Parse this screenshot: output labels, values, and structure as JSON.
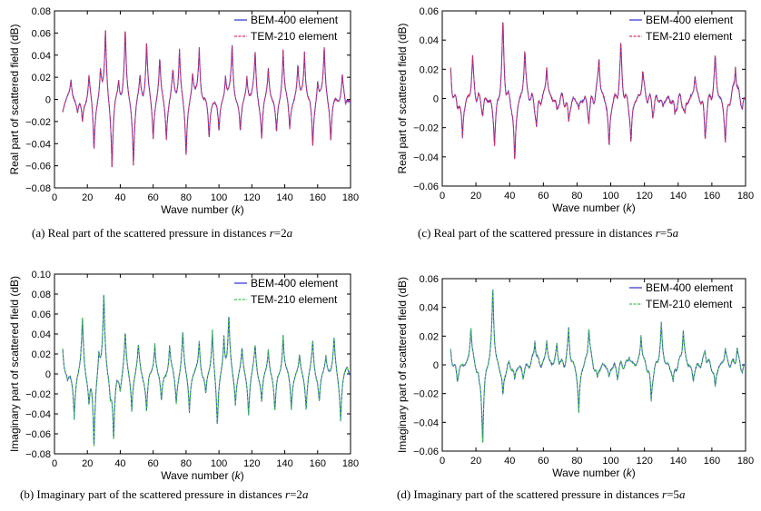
{
  "chart_data": [
    {
      "id": "a",
      "type": "line",
      "caption": {
        "pre": "(a) Real part of the scattered pressure in distances ",
        "var": "r",
        "post": "=2",
        "var2": "a"
      },
      "xlabel": "Wave number (k)",
      "ylabel": "Real part of scattered field (dB)",
      "xlim": [
        0,
        180
      ],
      "ylim": [
        -0.08,
        0.08
      ],
      "xticks": [
        0,
        20,
        40,
        60,
        80,
        100,
        120,
        140,
        160,
        180
      ],
      "yticks": [
        -0.08,
        -0.06,
        -0.04,
        -0.02,
        0,
        0.02,
        0.04,
        0.06,
        0.08
      ],
      "ytick_labels": [
        "−0.08",
        "−0.06",
        "−0.04",
        "−0.02",
        "0",
        "0.02",
        "0.04",
        "0.06",
        "0.08"
      ],
      "legend": [
        "BEM-400 element",
        "TEM-210 element"
      ],
      "colors": {
        "series1": "#2b2bd6",
        "series2": "#e0305a"
      },
      "baseline": 0.0,
      "osc_amp": 0.004,
      "osc_period": 7,
      "peaks": [
        [
          5,
          -0.008
        ],
        [
          10,
          0.018
        ],
        [
          14,
          -0.012
        ],
        [
          17,
          -0.022
        ],
        [
          21,
          0.025
        ],
        [
          24,
          -0.05
        ],
        [
          28,
          0.028
        ],
        [
          31,
          0.066
        ],
        [
          35,
          -0.066
        ],
        [
          39,
          0.02
        ],
        [
          43,
          0.066
        ],
        [
          48,
          -0.062
        ],
        [
          52,
          0.022
        ],
        [
          56,
          0.054
        ],
        [
          60,
          -0.037
        ],
        [
          64,
          0.04
        ],
        [
          68,
          -0.035
        ],
        [
          72,
          0.025
        ],
        [
          76,
          0.05
        ],
        [
          80,
          -0.055
        ],
        [
          84,
          0.025
        ],
        [
          88,
          0.05
        ],
        [
          94,
          -0.038
        ],
        [
          100,
          -0.032
        ],
        [
          104,
          0.025
        ],
        [
          108,
          0.05
        ],
        [
          113,
          -0.032
        ],
        [
          117,
          0.022
        ],
        [
          122,
          0.044
        ],
        [
          126,
          -0.038
        ],
        [
          130,
          0.03
        ],
        [
          135,
          -0.034
        ],
        [
          139,
          0.05
        ],
        [
          143,
          -0.03
        ],
        [
          148,
          0.032
        ],
        [
          152,
          0.045
        ],
        [
          157,
          -0.047
        ],
        [
          160,
          0.02
        ],
        [
          164,
          0.05
        ],
        [
          168,
          -0.04
        ],
        [
          175,
          0.025
        ],
        [
          177,
          -0.01
        ]
      ],
      "series": [
        {
          "name": "BEM-400 element"
        },
        {
          "name": "TEM-210 element"
        }
      ]
    },
    {
      "id": "c",
      "type": "line",
      "caption": {
        "pre": "(c) Real part of the scattered pressure in distances ",
        "var": "r",
        "post": "=5",
        "var2": "a"
      },
      "xlabel": "Wave number (k)",
      "ylabel": "Real part of scattered field (dB)",
      "xlim": [
        0,
        180
      ],
      "ylim": [
        -0.06,
        0.06
      ],
      "xticks": [
        0,
        20,
        40,
        60,
        80,
        100,
        120,
        140,
        160,
        180
      ],
      "yticks": [
        -0.06,
        -0.04,
        -0.02,
        0,
        0.02,
        0.04,
        0.06
      ],
      "ytick_labels": [
        "−0.06",
        "−0.04",
        "−0.02",
        "0",
        "0.02",
        "0.04",
        "0.06"
      ],
      "legend": [
        "BEM-400 element",
        "TEM-210 element"
      ],
      "colors": {
        "series1": "#2b2bd6",
        "series2": "#e0305a"
      },
      "baseline": 0.0,
      "osc_amp": 0.004,
      "osc_period": 3.5,
      "peaks": [
        [
          5,
          0.02
        ],
        [
          9,
          -0.005
        ],
        [
          12,
          -0.027
        ],
        [
          18,
          0.028
        ],
        [
          24,
          -0.01
        ],
        [
          31,
          -0.034
        ],
        [
          36,
          0.054
        ],
        [
          43,
          -0.048
        ],
        [
          49,
          0.035
        ],
        [
          56,
          -0.02
        ],
        [
          62,
          0.023
        ],
        [
          68,
          -0.009
        ],
        [
          75,
          -0.018
        ],
        [
          81,
          -0.008
        ],
        [
          87,
          -0.015
        ],
        [
          93,
          0.03
        ],
        [
          99,
          -0.036
        ],
        [
          106,
          0.037
        ],
        [
          112,
          -0.032
        ],
        [
          119,
          0.02
        ],
        [
          125,
          -0.01
        ],
        [
          131,
          -0.006
        ],
        [
          138,
          -0.012
        ],
        [
          144,
          -0.013
        ],
        [
          150,
          0.017
        ],
        [
          156,
          -0.028
        ],
        [
          162,
          0.03
        ],
        [
          168,
          -0.033
        ],
        [
          174,
          0.026
        ],
        [
          178,
          -0.006
        ]
      ],
      "series": [
        {
          "name": "BEM-400 element"
        },
        {
          "name": "TEM-210 element"
        }
      ]
    },
    {
      "id": "b",
      "type": "line",
      "caption": {
        "pre": "(b) Imaginary part of the scattered pressure in distances ",
        "var": "r",
        "post": "=2",
        "var2": "a"
      },
      "xlabel": "Wave number (k)",
      "ylabel": "Imaginary part of scattered field (dB)",
      "xlim": [
        0,
        180
      ],
      "ylim": [
        -0.08,
        0.1
      ],
      "xticks": [
        0,
        20,
        40,
        60,
        80,
        100,
        120,
        140,
        160,
        180
      ],
      "yticks": [
        -0.08,
        -0.06,
        -0.04,
        -0.02,
        0,
        0.02,
        0.04,
        0.06,
        0.08,
        0.1
      ],
      "ytick_labels": [
        "−0.08",
        "−0.06",
        "−0.04",
        "−0.02",
        "0",
        "0.02",
        "0.04",
        "0.06",
        "0.08",
        "0.10"
      ],
      "legend": [
        "BEM-400 element",
        "TEM-210 element"
      ],
      "colors": {
        "series1": "#2b2bd6",
        "series2": "#3cc84a"
      },
      "baseline": 0.0,
      "osc_amp": 0.004,
      "osc_period": 7,
      "peaks": [
        [
          5,
          0.03
        ],
        [
          8,
          -0.01
        ],
        [
          12,
          -0.045
        ],
        [
          17,
          0.06
        ],
        [
          21,
          -0.03
        ],
        [
          24,
          -0.079
        ],
        [
          27,
          0.025
        ],
        [
          30,
          0.086
        ],
        [
          34,
          -0.02
        ],
        [
          36,
          -0.071
        ],
        [
          40,
          -0.015
        ],
        [
          43,
          0.044
        ],
        [
          47,
          -0.038
        ],
        [
          51,
          0.03
        ],
        [
          56,
          -0.04
        ],
        [
          61,
          0.033
        ],
        [
          65,
          -0.03
        ],
        [
          70,
          0.03
        ],
        [
          74,
          -0.03
        ],
        [
          78,
          0.045
        ],
        [
          82,
          -0.038
        ],
        [
          88,
          0.036
        ],
        [
          92,
          -0.024
        ],
        [
          96,
          0.048
        ],
        [
          99,
          -0.058
        ],
        [
          103,
          0.04
        ],
        [
          106,
          0.058
        ],
        [
          110,
          -0.03
        ],
        [
          114,
          0.028
        ],
        [
          118,
          -0.042
        ],
        [
          122,
          0.03
        ],
        [
          126,
          -0.03
        ],
        [
          130,
          0.026
        ],
        [
          134,
          -0.042
        ],
        [
          139,
          0.044
        ],
        [
          144,
          -0.036
        ],
        [
          149,
          0.02
        ],
        [
          153,
          -0.036
        ],
        [
          157,
          0.034
        ],
        [
          161,
          -0.03
        ],
        [
          165,
          0.02
        ],
        [
          170,
          0.037
        ],
        [
          174,
          -0.046
        ],
        [
          178,
          0.007
        ]
      ],
      "series": [
        {
          "name": "BEM-400 element"
        },
        {
          "name": "TEM-210 element"
        }
      ]
    },
    {
      "id": "d",
      "type": "line",
      "caption": {
        "pre": "(d) Imaginary part of the scattered pressure in distances ",
        "var": "r",
        "post": "=5",
        "var2": "a"
      },
      "xlabel": "Wave number (k)",
      "ylabel": "Imaginary part of scattered field (dB)",
      "xlim": [
        0,
        180
      ],
      "ylim": [
        -0.06,
        0.06
      ],
      "xticks": [
        0,
        20,
        40,
        60,
        80,
        100,
        120,
        140,
        160,
        180
      ],
      "yticks": [
        -0.06,
        -0.04,
        -0.02,
        0,
        0.02,
        0.04,
        0.06
      ],
      "ytick_labels": [
        "−0.06",
        "−0.04",
        "−0.02",
        "0",
        "0.02",
        "0.04",
        "0.06"
      ],
      "legend": [
        "BEM-400 element",
        "TEM-210 element"
      ],
      "colors": {
        "series1": "#2b2bd6",
        "series2": "#3cc84a"
      },
      "baseline": 0.0,
      "osc_amp": 0.003,
      "osc_period": 3.5,
      "peaks": [
        [
          5,
          0.01
        ],
        [
          9,
          -0.012
        ],
        [
          17,
          0.029
        ],
        [
          22,
          -0.01
        ],
        [
          24,
          -0.055
        ],
        [
          30,
          0.057
        ],
        [
          36,
          -0.025
        ],
        [
          43,
          -0.012
        ],
        [
          48,
          -0.01
        ],
        [
          55,
          0.02
        ],
        [
          62,
          0.018
        ],
        [
          68,
          0.015
        ],
        [
          75,
          0.025
        ],
        [
          81,
          -0.035
        ],
        [
          87,
          0.029
        ],
        [
          92,
          -0.012
        ],
        [
          99,
          -0.01
        ],
        [
          104,
          -0.008
        ],
        [
          111,
          0.007
        ],
        [
          118,
          0.022
        ],
        [
          124,
          -0.027
        ],
        [
          130,
          0.03
        ],
        [
          137,
          -0.014
        ],
        [
          143,
          0.027
        ],
        [
          149,
          -0.012
        ],
        [
          156,
          0.012
        ],
        [
          162,
          -0.018
        ],
        [
          168,
          0.012
        ],
        [
          175,
          0.012
        ],
        [
          178,
          -0.005
        ]
      ],
      "series": [
        {
          "name": "BEM-400 element"
        },
        {
          "name": "TEM-210 element"
        }
      ]
    }
  ]
}
